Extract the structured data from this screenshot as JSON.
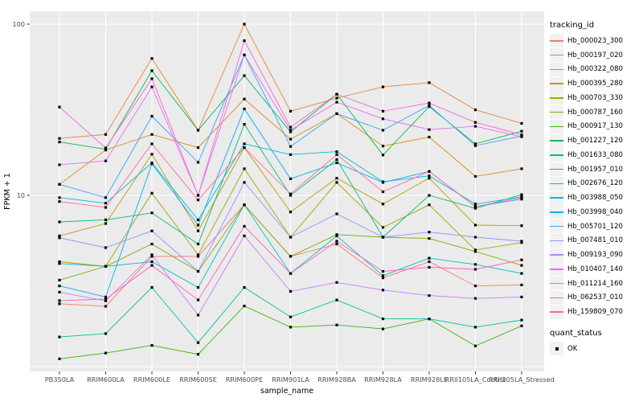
{
  "figure": {
    "background": "#FFFFFF",
    "panel_background": "#EBEBEB",
    "gridline_major": "#FFFFFF",
    "gridline_minor": "#F5F5F5",
    "tick_label_color": "#4D4D4D",
    "axis_title_color": "#000000",
    "point_color": "#000000"
  },
  "axes": {
    "x_title": "sample_name",
    "y_title": "FPKM + 1",
    "y_tick_labels": [
      "100",
      "10"
    ],
    "y_tick_values": [
      100,
      10
    ]
  },
  "legend": {
    "tracking_title": "tracking_id",
    "quant_title": "quant_status",
    "quant_items": [
      {
        "label": "OK",
        "marker": "black-square"
      }
    ]
  },
  "chart_data": {
    "type": "line",
    "title": "",
    "xlabel": "sample_name",
    "ylabel": "FPKM + 1",
    "y_scale": "log10",
    "ylim": [
      0.94,
      119
    ],
    "y_major_ticks": [
      1,
      10,
      100
    ],
    "y_minor_ticks": [
      3.16,
      31.6
    ],
    "grid": true,
    "legend_position": "right",
    "point_marker": "filled-black-square",
    "categories": [
      "PB350LA",
      "RRIM600LA",
      "RRIM600LE",
      "RRIM600SE",
      "RRIM600PE",
      "RRIM901LA",
      "RRIM928BA",
      "RRIM928LA",
      "RRIM928LE",
      "RRII105LA_Control",
      "RRII105LA_Stressed"
    ],
    "series": [
      {
        "name": "Hb_000023_300",
        "color": "#F8766D",
        "values": [
          2.33,
          2.25,
          4.4,
          4.4,
          8.8,
          4.4,
          5.2,
          3.3,
          4.1,
          2.96,
          3.0
        ]
      },
      {
        "name": "Hb_000197_020",
        "color": "#EA8331",
        "values": [
          21.5,
          22.7,
          63,
          24,
          100,
          31,
          37,
          43,
          45.5,
          31.6,
          26.3
        ]
      },
      {
        "name": "Hb_000322_080",
        "color": "#D89000",
        "values": [
          11.6,
          18.4,
          22.7,
          19,
          36.5,
          21.3,
          30,
          19.4,
          21.9,
          12.9,
          14.3
        ]
      },
      {
        "name": "Hb_000395_280",
        "color": "#C09B00",
        "values": [
          5.8,
          6.85,
          17.4,
          6.2,
          19,
          8.0,
          12.6,
          8.9,
          12.6,
          6.7,
          6.65
        ]
      },
      {
        "name": "Hb_000703_330",
        "color": "#A3A500",
        "values": [
          4.1,
          3.85,
          10.3,
          4.5,
          14.3,
          5.7,
          11.9,
          6.5,
          8.8,
          4.8,
          5.3
        ]
      },
      {
        "name": "Hb_000787_160",
        "color": "#7CAE00",
        "values": [
          3.2,
          3.85,
          5.2,
          3.6,
          8.8,
          4.4,
          5.9,
          5.7,
          5.6,
          4.7,
          3.9
        ]
      },
      {
        "name": "Hb_000917_130",
        "color": "#39B600",
        "values": [
          1.11,
          1.2,
          1.33,
          1.18,
          2.26,
          1.7,
          1.75,
          1.66,
          1.9,
          1.32,
          1.73
        ]
      },
      {
        "name": "Hb_001227_120",
        "color": "#00BB4E",
        "values": [
          20.5,
          18.6,
          53.5,
          24,
          50,
          23.5,
          39,
          17.2,
          33,
          20,
          23.7
        ]
      },
      {
        "name": "Hb_001633_080",
        "color": "#00BF7D",
        "values": [
          7.0,
          7.2,
          7.9,
          5.2,
          26,
          10,
          16.2,
          5.7,
          10,
          8.4,
          10.1
        ]
      },
      {
        "name": "Hb_001957_010",
        "color": "#00C1A3",
        "values": [
          1.49,
          1.56,
          2.9,
          1.38,
          2.9,
          1.95,
          2.45,
          1.9,
          1.9,
          1.7,
          1.87
        ]
      },
      {
        "name": "Hb_002676_120",
        "color": "#00BFC4",
        "values": [
          4.0,
          3.85,
          4.1,
          2.9,
          8.8,
          3.5,
          5.8,
          3.4,
          4.3,
          3.95,
          3.5
        ]
      },
      {
        "name": "Hb_003988_050",
        "color": "#00BAE0",
        "values": [
          9.7,
          9.0,
          15.5,
          7.2,
          20,
          17.3,
          18,
          12,
          13,
          8.9,
          9.8
        ]
      },
      {
        "name": "Hb_003998_040",
        "color": "#00B0F6",
        "values": [
          2.96,
          2.55,
          15.3,
          6.7,
          32,
          12.5,
          15.5,
          11.9,
          13.8,
          8.6,
          9.5
        ]
      },
      {
        "name": "Hb_005701_120",
        "color": "#35A2FF",
        "values": [
          11.6,
          9.7,
          29,
          15.6,
          66,
          19.3,
          30,
          24,
          33.5,
          19.5,
          22.2
        ]
      },
      {
        "name": "Hb_007481_010",
        "color": "#9590FF",
        "values": [
          5.65,
          4.95,
          6.2,
          3.6,
          11.9,
          5.7,
          7.8,
          5.7,
          6.1,
          5.7,
          5.4
        ]
      },
      {
        "name": "Hb_009193_090",
        "color": "#C77CFF",
        "values": [
          2.72,
          2.42,
          4.5,
          2.0,
          5.8,
          2.75,
          3.1,
          2.8,
          2.6,
          2.5,
          2.55
        ]
      },
      {
        "name": "Hb_010407_140",
        "color": "#E76BF3",
        "values": [
          15.1,
          15.9,
          43,
          10,
          66,
          24,
          35,
          28,
          24.2,
          25.3,
          22
        ]
      },
      {
        "name": "Hb_011214_160",
        "color": "#FA62DB",
        "values": [
          32.8,
          18.9,
          48,
          10,
          80,
          25,
          39,
          31,
          34.6,
          26.7,
          22.6
        ]
      },
      {
        "name": "Hb_062537_010",
        "color": "#FF62BC",
        "values": [
          2.43,
          2.48,
          3.9,
          2.45,
          6.6,
          3.5,
          5.4,
          3.6,
          3.8,
          3.7,
          4.2
        ]
      },
      {
        "name": "Hb_159809_070",
        "color": "#FF6A98",
        "values": [
          9.2,
          8.5,
          20,
          9.4,
          19,
          10.2,
          17.3,
          10.5,
          13.8,
          8.6,
          9.7
        ]
      }
    ]
  }
}
